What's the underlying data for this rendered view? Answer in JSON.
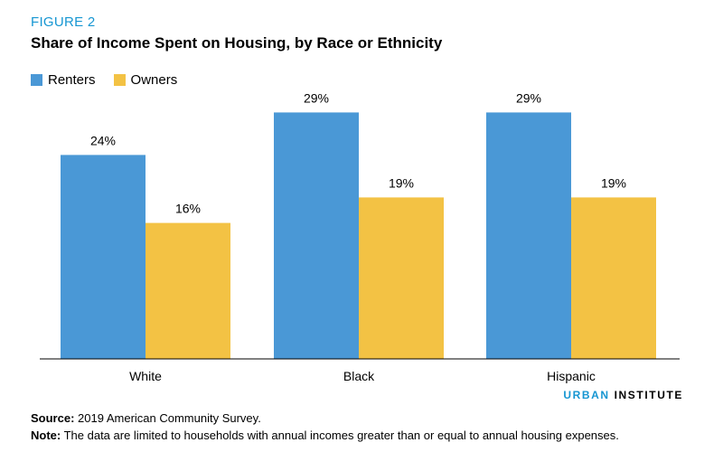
{
  "figure_label": "FIGURE 2",
  "colors": {
    "renters": "#4a98d6",
    "owners": "#f3c244",
    "accent": "#1696d2"
  },
  "chart_data": {
    "type": "bar",
    "title": "Share of Income Spent on Housing, by Race or Ethnicity",
    "categories": [
      "White",
      "Black",
      "Hispanic"
    ],
    "series": [
      {
        "name": "Renters",
        "values": [
          24,
          29,
          29
        ],
        "labels": [
          "24%",
          "29%",
          "29%"
        ]
      },
      {
        "name": "Owners",
        "values": [
          16,
          19,
          19
        ],
        "labels": [
          "16%",
          "19%",
          "19%"
        ]
      }
    ],
    "ylim": [
      0,
      32
    ],
    "grid": false,
    "legend_position": "top-left"
  },
  "brand": {
    "part1": "URBAN",
    "part2": "INSTITUTE"
  },
  "notes": {
    "source_label": "Source:",
    "source_text": " 2019 American Community Survey.",
    "note_label": "Note:",
    "note_text": " The data are limited to households with annual incomes greater than or equal to annual housing expenses."
  }
}
